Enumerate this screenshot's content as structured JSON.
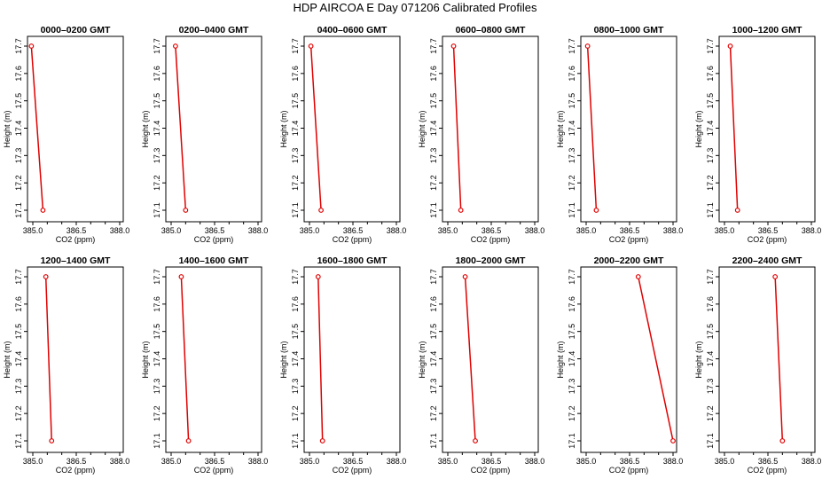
{
  "title": "HDP  AIRCOA E  Day 071206  Calibrated Profiles",
  "colors": {
    "line": "#e00000",
    "marker": "#e00000",
    "axis": "#000000"
  },
  "chart_data": [
    {
      "type": "line",
      "title": "0000–0200 GMT",
      "xlabel": "CO2 (ppm)",
      "ylabel": "Height (m)",
      "xlim": [
        385,
        388
      ],
      "ylim": [
        17.1,
        17.7
      ],
      "xticks": [
        "385.0",
        "386.5",
        "388.0"
      ],
      "xticks_minor": [
        "385.5",
        "386.0",
        "387.0",
        "387.5"
      ],
      "yticks": [
        "17.1",
        "17.2",
        "17.3",
        "17.4",
        "17.5",
        "17.6",
        "17.7"
      ],
      "x": [
        384.95,
        385.35
      ],
      "y": [
        17.7,
        17.1
      ]
    },
    {
      "type": "line",
      "title": "0200–0400 GMT",
      "xlabel": "CO2 (ppm)",
      "ylabel": "Height (m)",
      "xlim": [
        385,
        388
      ],
      "ylim": [
        17.1,
        17.7
      ],
      "xticks": [
        "385.0",
        "386.5",
        "388.0"
      ],
      "xticks_minor": [
        "385.5",
        "386.0",
        "387.0",
        "387.5"
      ],
      "yticks": [
        "17.1",
        "17.2",
        "17.3",
        "17.4",
        "17.5",
        "17.6",
        "17.7"
      ],
      "x": [
        385.15,
        385.5
      ],
      "y": [
        17.7,
        17.1
      ]
    },
    {
      "type": "line",
      "title": "0400–0600 GMT",
      "xlabel": "CO2 (ppm)",
      "ylabel": "Height (m)",
      "xlim": [
        385,
        388
      ],
      "ylim": [
        17.1,
        17.7
      ],
      "xticks": [
        "385.0",
        "386.5",
        "388.0"
      ],
      "xticks_minor": [
        "385.5",
        "386.0",
        "387.0",
        "387.5"
      ],
      "yticks": [
        "17.1",
        "17.2",
        "17.3",
        "17.4",
        "17.5",
        "17.6",
        "17.7"
      ],
      "x": [
        385.05,
        385.4
      ],
      "y": [
        17.7,
        17.1
      ]
    },
    {
      "type": "line",
      "title": "0600–0800 GMT",
      "xlabel": "CO2 (ppm)",
      "ylabel": "Height (m)",
      "xlim": [
        385,
        388
      ],
      "ylim": [
        17.1,
        17.7
      ],
      "xticks": [
        "385.0",
        "386.5",
        "388.0"
      ],
      "xticks_minor": [
        "385.5",
        "386.0",
        "387.0",
        "387.5"
      ],
      "yticks": [
        "17.1",
        "17.2",
        "17.3",
        "17.4",
        "17.5",
        "17.6",
        "17.7"
      ],
      "x": [
        385.2,
        385.45
      ],
      "y": [
        17.7,
        17.1
      ]
    },
    {
      "type": "line",
      "title": "0800–1000 GMT",
      "xlabel": "CO2 (ppm)",
      "ylabel": "Height (m)",
      "xlim": [
        385,
        388
      ],
      "ylim": [
        17.1,
        17.7
      ],
      "xticks": [
        "385.0",
        "386.5",
        "388.0"
      ],
      "xticks_minor": [
        "385.5",
        "386.0",
        "387.0",
        "387.5"
      ],
      "yticks": [
        "17.1",
        "17.2",
        "17.3",
        "17.4",
        "17.5",
        "17.6",
        "17.7"
      ],
      "x": [
        385.05,
        385.35
      ],
      "y": [
        17.7,
        17.1
      ]
    },
    {
      "type": "line",
      "title": "1000–1200 GMT",
      "xlabel": "CO2 (ppm)",
      "ylabel": "Height (m)",
      "xlim": [
        385,
        388
      ],
      "ylim": [
        17.1,
        17.7
      ],
      "xticks": [
        "385.0",
        "386.5",
        "388.0"
      ],
      "xticks_minor": [
        "385.5",
        "386.0",
        "387.0",
        "387.5"
      ],
      "yticks": [
        "17.1",
        "17.2",
        "17.3",
        "17.4",
        "17.5",
        "17.6",
        "17.7"
      ],
      "x": [
        385.2,
        385.45
      ],
      "y": [
        17.7,
        17.1
      ]
    },
    {
      "type": "line",
      "title": "1200–1400 GMT",
      "xlabel": "CO2 (ppm)",
      "ylabel": "Height (m)",
      "xlim": [
        385,
        388
      ],
      "ylim": [
        17.1,
        17.7
      ],
      "xticks": [
        "385.0",
        "386.5",
        "388.0"
      ],
      "xticks_minor": [
        "385.5",
        "386.0",
        "387.0",
        "387.5"
      ],
      "yticks": [
        "17.1",
        "17.2",
        "17.3",
        "17.4",
        "17.5",
        "17.6",
        "17.7"
      ],
      "x": [
        385.45,
        385.65
      ],
      "y": [
        17.7,
        17.1
      ]
    },
    {
      "type": "line",
      "title": "1400–1600 GMT",
      "xlabel": "CO2 (ppm)",
      "ylabel": "Height (m)",
      "xlim": [
        385,
        388
      ],
      "ylim": [
        17.1,
        17.7
      ],
      "xticks": [
        "385.0",
        "386.5",
        "388.0"
      ],
      "xticks_minor": [
        "385.5",
        "386.0",
        "387.0",
        "387.5"
      ],
      "yticks": [
        "17.1",
        "17.2",
        "17.3",
        "17.4",
        "17.5",
        "17.6",
        "17.7"
      ],
      "x": [
        385.35,
        385.6
      ],
      "y": [
        17.7,
        17.1
      ]
    },
    {
      "type": "line",
      "title": "1600–1800 GMT",
      "xlabel": "CO2 (ppm)",
      "ylabel": "Height (m)",
      "xlim": [
        385,
        388
      ],
      "ylim": [
        17.1,
        17.7
      ],
      "xticks": [
        "385.0",
        "386.5",
        "388.0"
      ],
      "xticks_minor": [
        "385.5",
        "386.0",
        "387.0",
        "387.5"
      ],
      "yticks": [
        "17.1",
        "17.2",
        "17.3",
        "17.4",
        "17.5",
        "17.6",
        "17.7"
      ],
      "x": [
        385.3,
        385.45
      ],
      "y": [
        17.7,
        17.1
      ]
    },
    {
      "type": "line",
      "title": "1800–2000 GMT",
      "xlabel": "CO2 (ppm)",
      "ylabel": "Height (m)",
      "xlim": [
        385,
        388
      ],
      "ylim": [
        17.1,
        17.7
      ],
      "xticks": [
        "385.0",
        "386.5",
        "388.0"
      ],
      "xticks_minor": [
        "385.5",
        "386.0",
        "387.0",
        "387.5"
      ],
      "yticks": [
        "17.1",
        "17.2",
        "17.3",
        "17.4",
        "17.5",
        "17.6",
        "17.7"
      ],
      "x": [
        385.6,
        385.95
      ],
      "y": [
        17.7,
        17.1
      ]
    },
    {
      "type": "line",
      "title": "2000–2200 GMT",
      "xlabel": "CO2 (ppm)",
      "ylabel": "Height (m)",
      "xlim": [
        385,
        388
      ],
      "ylim": [
        17.1,
        17.7
      ],
      "xticks": [
        "385.0",
        "386.5",
        "388.0"
      ],
      "xticks_minor": [
        "385.5",
        "386.0",
        "387.0",
        "387.5"
      ],
      "yticks": [
        "17.1",
        "17.2",
        "17.3",
        "17.4",
        "17.5",
        "17.6",
        "17.7"
      ],
      "x": [
        386.8,
        388.0
      ],
      "y": [
        17.7,
        17.1
      ]
    },
    {
      "type": "line",
      "title": "2200–2400 GMT",
      "xlabel": "CO2 (ppm)",
      "ylabel": "Height (m)",
      "xlim": [
        385,
        388
      ],
      "ylim": [
        17.1,
        17.7
      ],
      "xticks": [
        "385.0",
        "386.5",
        "388.0"
      ],
      "xticks_minor": [
        "385.5",
        "386.0",
        "387.0",
        "387.5"
      ],
      "yticks": [
        "17.1",
        "17.2",
        "17.3",
        "17.4",
        "17.5",
        "17.6",
        "17.7"
      ],
      "x": [
        386.75,
        387.0
      ],
      "y": [
        17.7,
        17.1
      ]
    }
  ]
}
